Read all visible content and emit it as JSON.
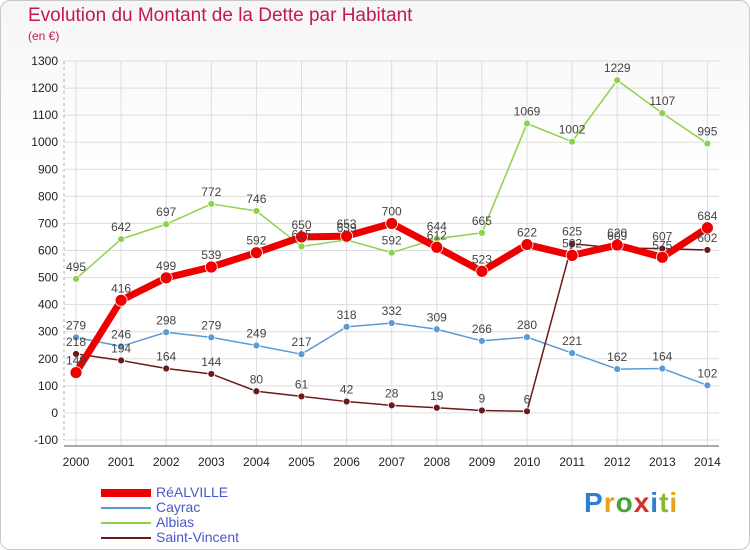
{
  "header": {
    "title": "Evolution du Montant de la Dette par Habitant",
    "subtitle": "(en €)"
  },
  "brand": {
    "text": "Proxiti"
  },
  "colors": {
    "title": "#c2185b",
    "realville": "#ee0000",
    "cayrac": "#5b9bd5",
    "albias": "#8ed14b",
    "saint_vincent": "#6b1a1a",
    "grid": "#dddddd"
  },
  "chart_data": {
    "type": "line",
    "title": "Evolution du Montant de la Dette par Habitant",
    "subtitle": "(en €)",
    "ylim": [
      -100,
      1300
    ],
    "yticks": [
      -100,
      0,
      100,
      200,
      300,
      400,
      500,
      600,
      700,
      800,
      900,
      1000,
      1100,
      1200,
      1300
    ],
    "categories": [
      "2000",
      "2001",
      "2002",
      "2003",
      "2004",
      "2005",
      "2006",
      "2007",
      "2008",
      "2009",
      "2010",
      "2011",
      "2012",
      "2013",
      "2014"
    ],
    "grid": true,
    "legend_position": "bottom-left",
    "series": [
      {
        "name": "RéALVILLE",
        "key": "realville",
        "values": [
          149,
          416,
          499,
          539,
          592,
          650,
          653,
          700,
          612,
          523,
          622,
          582,
          620,
          575,
          684
        ]
      },
      {
        "name": "Cayrac",
        "key": "cayrac",
        "values": [
          279,
          246,
          298,
          279,
          249,
          217,
          318,
          332,
          309,
          266,
          280,
          221,
          162,
          164,
          102
        ]
      },
      {
        "name": "Albias",
        "key": "albias",
        "values": [
          495,
          642,
          697,
          772,
          746,
          615,
          639,
          592,
          644,
          665,
          1069,
          1002,
          1229,
          1107,
          995
        ]
      },
      {
        "name": "Saint-Vincent",
        "key": "saint_vincent",
        "values": [
          218,
          194,
          164,
          144,
          80,
          61,
          42,
          28,
          19,
          9,
          6,
          625,
          609,
          607,
          602
        ]
      }
    ]
  }
}
